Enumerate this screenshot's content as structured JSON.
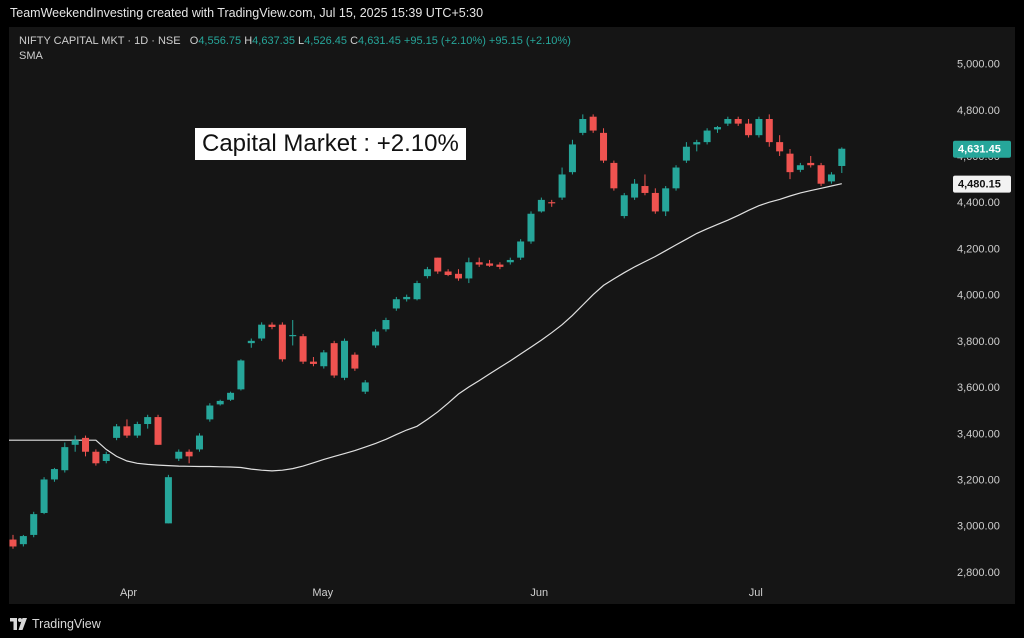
{
  "banner": "TeamWeekendInvesting created with TradingView.com, Jul 15, 2025 15:39 UTC+5:30",
  "legend": {
    "symbol": "NIFTY CAPITAL MKT · 1D · NSE",
    "o_label": "O",
    "o_value": "4,556.75",
    "h_label": "H",
    "h_value": "4,637.35",
    "l_label": "L",
    "l_value": "4,526.45",
    "c_label": "C",
    "c_value": "4,631.45",
    "change1": "+95.15 (+2.10%)",
    "change2": "+95.15 (+2.10%)",
    "indicator": "SMA"
  },
  "annotation": "Capital Market : +2.10%",
  "footer_logo": "TradingView",
  "colors": {
    "up": "#26a69a",
    "down": "#ef5350",
    "sma": "#e0e0e0",
    "bg": "#151515"
  },
  "chart_data": {
    "type": "candlestick",
    "y_range": [
      2700,
      5050
    ],
    "y_ticks": [
      "5,000.00",
      "4,800.00",
      "4,600.00",
      "4,400.00",
      "4,200.00",
      "4,000.00",
      "3,800.00",
      "3,600.00",
      "3,400.00",
      "3,200.00",
      "3,000.00",
      "2,800.00"
    ],
    "x_labels": [
      "Apr",
      "May",
      "Jun",
      "Jul"
    ],
    "last_price": "4,631.45",
    "sma_value": "4,480.15",
    "candles": [
      {
        "o": 2940,
        "h": 2960,
        "l": 2900,
        "c": 2910
      },
      {
        "o": 2920,
        "h": 2960,
        "l": 2910,
        "c": 2955
      },
      {
        "o": 2960,
        "h": 3060,
        "l": 2950,
        "c": 3050
      },
      {
        "o": 3055,
        "h": 3210,
        "l": 3050,
        "c": 3200
      },
      {
        "o": 3200,
        "h": 3250,
        "l": 3190,
        "c": 3245
      },
      {
        "o": 3240,
        "h": 3360,
        "l": 3230,
        "c": 3340
      },
      {
        "o": 3350,
        "h": 3390,
        "l": 3320,
        "c": 3370
      },
      {
        "o": 3380,
        "h": 3390,
        "l": 3300,
        "c": 3320
      },
      {
        "o": 3320,
        "h": 3330,
        "l": 3260,
        "c": 3270
      },
      {
        "o": 3280,
        "h": 3320,
        "l": 3270,
        "c": 3310
      },
      {
        "o": 3380,
        "h": 3440,
        "l": 3370,
        "c": 3430
      },
      {
        "o": 3430,
        "h": 3460,
        "l": 3380,
        "c": 3390
      },
      {
        "o": 3390,
        "h": 3450,
        "l": 3380,
        "c": 3440
      },
      {
        "o": 3440,
        "h": 3480,
        "l": 3420,
        "c": 3470
      },
      {
        "o": 3470,
        "h": 3480,
        "l": 3350,
        "c": 3350
      },
      {
        "o": 3010,
        "h": 3220,
        "l": 3010,
        "c": 3210
      },
      {
        "o": 3290,
        "h": 3330,
        "l": 3280,
        "c": 3320
      },
      {
        "o": 3320,
        "h": 3330,
        "l": 3270,
        "c": 3300
      },
      {
        "o": 3330,
        "h": 3400,
        "l": 3320,
        "c": 3390
      },
      {
        "o": 3460,
        "h": 3530,
        "l": 3450,
        "c": 3520
      },
      {
        "o": 3525,
        "h": 3545,
        "l": 3520,
        "c": 3540
      },
      {
        "o": 3545,
        "h": 3580,
        "l": 3540,
        "c": 3575
      },
      {
        "o": 3590,
        "h": 3720,
        "l": 3585,
        "c": 3715
      },
      {
        "o": 3790,
        "h": 3810,
        "l": 3770,
        "c": 3800
      },
      {
        "o": 3810,
        "h": 3880,
        "l": 3800,
        "c": 3870
      },
      {
        "o": 3870,
        "h": 3880,
        "l": 3850,
        "c": 3860
      },
      {
        "o": 3870,
        "h": 3880,
        "l": 3710,
        "c": 3720
      },
      {
        "o": 3820,
        "h": 3890,
        "l": 3780,
        "c": 3825
      },
      {
        "o": 3820,
        "h": 3830,
        "l": 3700,
        "c": 3710
      },
      {
        "o": 3710,
        "h": 3730,
        "l": 3690,
        "c": 3700
      },
      {
        "o": 3690,
        "h": 3760,
        "l": 3680,
        "c": 3750
      },
      {
        "o": 3790,
        "h": 3800,
        "l": 3640,
        "c": 3650
      },
      {
        "o": 3640,
        "h": 3810,
        "l": 3630,
        "c": 3800
      },
      {
        "o": 3740,
        "h": 3750,
        "l": 3670,
        "c": 3680
      },
      {
        "o": 3580,
        "h": 3630,
        "l": 3570,
        "c": 3620
      },
      {
        "o": 3780,
        "h": 3850,
        "l": 3770,
        "c": 3840
      },
      {
        "o": 3850,
        "h": 3900,
        "l": 3840,
        "c": 3890
      },
      {
        "o": 3940,
        "h": 3990,
        "l": 3930,
        "c": 3980
      },
      {
        "o": 3980,
        "h": 4000,
        "l": 3970,
        "c": 3990
      },
      {
        "o": 3980,
        "h": 4060,
        "l": 3975,
        "c": 4050
      },
      {
        "o": 4080,
        "h": 4120,
        "l": 4070,
        "c": 4110
      },
      {
        "o": 4160,
        "h": 4160,
        "l": 4090,
        "c": 4100
      },
      {
        "o": 4100,
        "h": 4110,
        "l": 4080,
        "c": 4085
      },
      {
        "o": 4090,
        "h": 4110,
        "l": 4060,
        "c": 4070
      },
      {
        "o": 4070,
        "h": 4160,
        "l": 4050,
        "c": 4140
      },
      {
        "o": 4140,
        "h": 4160,
        "l": 4120,
        "c": 4130
      },
      {
        "o": 4135,
        "h": 4150,
        "l": 4120,
        "c": 4125
      },
      {
        "o": 4130,
        "h": 4140,
        "l": 4110,
        "c": 4120
      },
      {
        "o": 4140,
        "h": 4160,
        "l": 4130,
        "c": 4150
      },
      {
        "o": 4160,
        "h": 4240,
        "l": 4150,
        "c": 4230
      },
      {
        "o": 4230,
        "h": 4360,
        "l": 4220,
        "c": 4350
      },
      {
        "o": 4360,
        "h": 4420,
        "l": 4355,
        "c": 4410
      },
      {
        "o": 4400,
        "h": 4410,
        "l": 4380,
        "c": 4395
      },
      {
        "o": 4420,
        "h": 4550,
        "l": 4410,
        "c": 4520
      },
      {
        "o": 4530,
        "h": 4670,
        "l": 4520,
        "c": 4650
      },
      {
        "o": 4700,
        "h": 4780,
        "l": 4690,
        "c": 4760
      },
      {
        "o": 4770,
        "h": 4780,
        "l": 4700,
        "c": 4710
      },
      {
        "o": 4700,
        "h": 4720,
        "l": 4570,
        "c": 4580
      },
      {
        "o": 4570,
        "h": 4580,
        "l": 4450,
        "c": 4460
      },
      {
        "o": 4340,
        "h": 4440,
        "l": 4330,
        "c": 4430
      },
      {
        "o": 4420,
        "h": 4500,
        "l": 4410,
        "c": 4480
      },
      {
        "o": 4470,
        "h": 4520,
        "l": 4430,
        "c": 4440
      },
      {
        "o": 4440,
        "h": 4460,
        "l": 4350,
        "c": 4360
      },
      {
        "o": 4360,
        "h": 4470,
        "l": 4340,
        "c": 4460
      },
      {
        "o": 4460,
        "h": 4560,
        "l": 4450,
        "c": 4550
      },
      {
        "o": 4580,
        "h": 4660,
        "l": 4570,
        "c": 4640
      },
      {
        "o": 4650,
        "h": 4670,
        "l": 4620,
        "c": 4660
      },
      {
        "o": 4660,
        "h": 4720,
        "l": 4650,
        "c": 4710
      },
      {
        "o": 4715,
        "h": 4730,
        "l": 4700,
        "c": 4725
      },
      {
        "o": 4740,
        "h": 4770,
        "l": 4730,
        "c": 4760
      },
      {
        "o": 4760,
        "h": 4770,
        "l": 4730,
        "c": 4740
      },
      {
        "o": 4740,
        "h": 4760,
        "l": 4680,
        "c": 4690
      },
      {
        "o": 4690,
        "h": 4770,
        "l": 4680,
        "c": 4760
      },
      {
        "o": 4760,
        "h": 4780,
        "l": 4640,
        "c": 4660
      },
      {
        "o": 4660,
        "h": 4690,
        "l": 4600,
        "c": 4620
      },
      {
        "o": 4610,
        "h": 4630,
        "l": 4500,
        "c": 4530
      },
      {
        "o": 4540,
        "h": 4570,
        "l": 4530,
        "c": 4560
      },
      {
        "o": 4570,
        "h": 4600,
        "l": 4550,
        "c": 4560
      },
      {
        "o": 4560,
        "h": 4570,
        "l": 4470,
        "c": 4480
      },
      {
        "o": 4490,
        "h": 4530,
        "l": 4480,
        "c": 4520
      },
      {
        "o": 4556.75,
        "h": 4637.35,
        "l": 4526.45,
        "c": 4631.45
      }
    ],
    "sma": [
      3370,
      3330,
      3300,
      3280,
      3270,
      3265,
      3262,
      3260,
      3258,
      3257,
      3256,
      3256,
      3255,
      3254,
      3252,
      3245,
      3240,
      3237,
      3240,
      3247,
      3258,
      3272,
      3287,
      3300,
      3312,
      3325,
      3340,
      3356,
      3374,
      3394,
      3414,
      3430,
      3460,
      3493,
      3530,
      3570,
      3600,
      3628,
      3657,
      3685,
      3713,
      3743,
      3773,
      3803,
      3835,
      3870,
      3910,
      3955,
      4000,
      4040,
      4068,
      4095,
      4120,
      4143,
      4165,
      4190,
      4215,
      4240,
      4265,
      4285,
      4304,
      4322,
      4343,
      4365,
      4385,
      4400,
      4412,
      4427,
      4440,
      4450,
      4460,
      4470,
      4480.15
    ]
  }
}
